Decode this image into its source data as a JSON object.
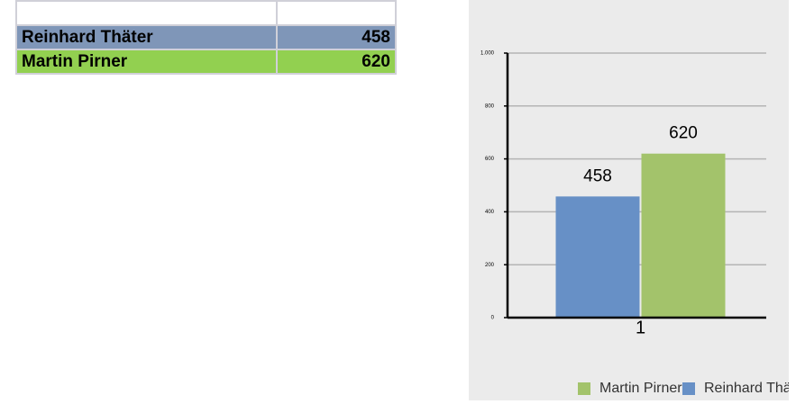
{
  "table": {
    "rows": [
      [
        "Reinhard Thäter",
        "458"
      ],
      [
        "Martin Pirner",
        "620"
      ]
    ]
  },
  "chart_data": {
    "type": "bar",
    "categories": [
      "1"
    ],
    "series": [
      {
        "name": "Reinhard Thäter",
        "color": "#6790c6",
        "values": [
          458
        ]
      },
      {
        "name": "Martin Pirner",
        "color": "#a3c36b",
        "values": [
          620
        ]
      }
    ],
    "ylim": [
      0,
      1000
    ],
    "yticks": [
      0,
      200,
      400,
      600,
      800,
      {
        "value": 1000,
        "label": "1.000"
      }
    ],
    "grid": true
  }
}
